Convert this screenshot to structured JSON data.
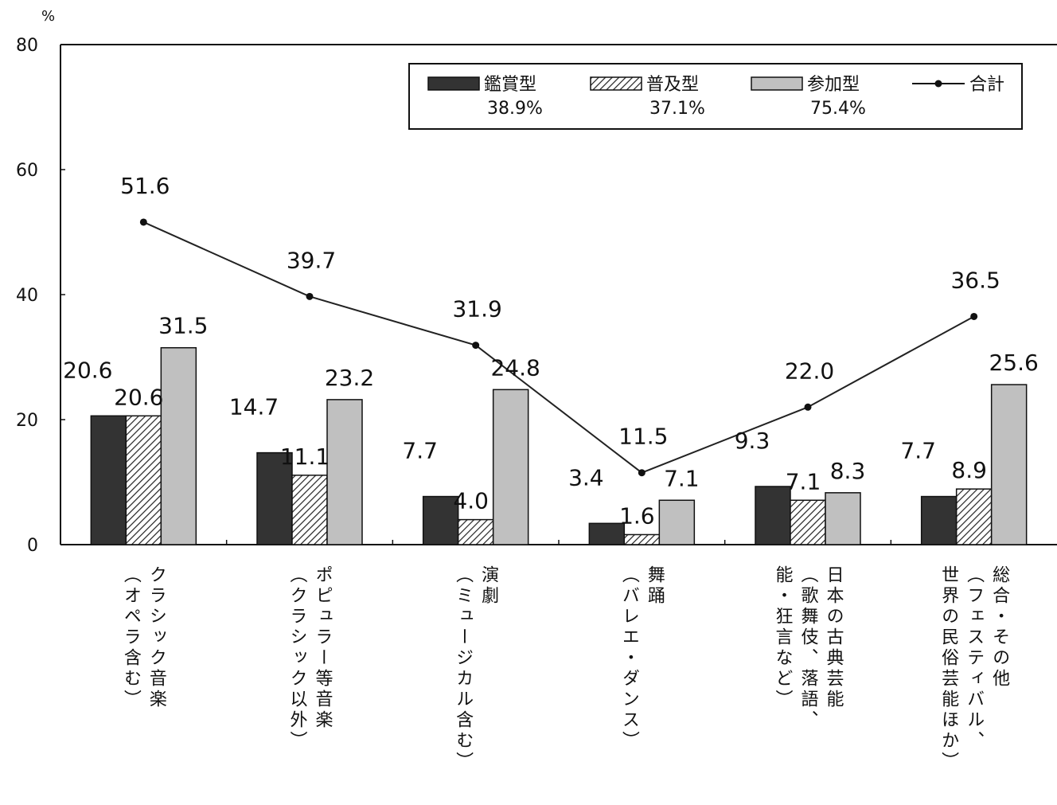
{
  "chart_data": {
    "type": "bar",
    "unit": "%",
    "ylim": [
      0,
      80
    ],
    "yticks": [
      "0",
      "20",
      "40",
      "60",
      "80"
    ],
    "legend_position": "top-right",
    "categories": [
      {
        "line1": "クラシック音楽",
        "line2": "（オペラ含む）"
      },
      {
        "line1": "ポピュラー等音楽",
        "line2": "（クラシック以外）"
      },
      {
        "line1": "演劇",
        "line2": "（ミュージカル含む）"
      },
      {
        "line1": "舞踊",
        "line2": "（バレエ・ダンス）"
      },
      {
        "line1": "日本の古典芸能",
        "line2": "（歌舞伎、落語、",
        "line3": "能・狂言など）"
      },
      {
        "line1": "総合・その他",
        "line2": "（フェスティバル、",
        "line3": "世界の民俗芸能ほか）"
      }
    ],
    "series": [
      {
        "name": "鑑賞型",
        "total": "38.9%",
        "style": "solid-dark",
        "color": "#333333",
        "values": [
          20.6,
          14.7,
          7.7,
          3.4,
          9.3,
          7.7
        ],
        "labels": [
          "20.6",
          "14.7",
          "7.7",
          "3.4",
          "9.3",
          "7.7"
        ]
      },
      {
        "name": "普及型",
        "total": "37.1%",
        "style": "hatched",
        "color": "#ffffff",
        "values": [
          20.6,
          11.1,
          4.0,
          1.6,
          7.1,
          8.9
        ],
        "labels": [
          "20.6",
          "11.1",
          "4.0",
          "1.6",
          "7.1",
          "8.9"
        ]
      },
      {
        "name": "参加型",
        "total": "75.4%",
        "style": "solid-light",
        "color": "#c0c0c0",
        "values": [
          31.5,
          23.2,
          24.8,
          7.1,
          8.3,
          25.6
        ],
        "labels": [
          "31.5",
          "23.2",
          "24.8",
          "7.1",
          "8.3",
          "25.6"
        ]
      },
      {
        "name": "合計",
        "style": "line-marker",
        "color": "#111111",
        "values": [
          51.6,
          39.7,
          31.9,
          11.5,
          22.0,
          36.5
        ],
        "labels": [
          "51.6",
          "39.7",
          "31.9",
          "11.5",
          "22.0",
          "36.5"
        ]
      }
    ]
  }
}
